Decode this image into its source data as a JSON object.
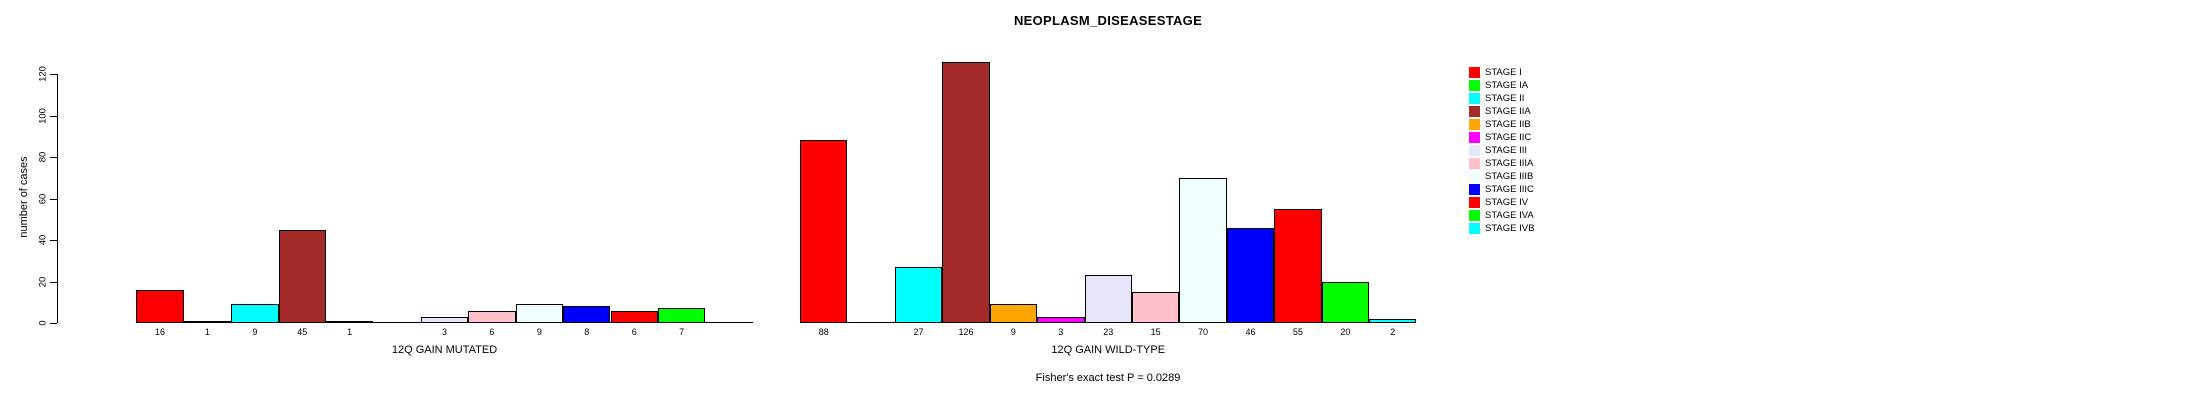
{
  "title": "NEOPLASM_DISEASESTAGE",
  "footer": "Fisher's exact test P = 0.0289",
  "chart_data": {
    "type": "bar",
    "title": "NEOPLASM_DISEASESTAGE",
    "xlabel": "",
    "ylabel": "number of cases",
    "ylim": [
      0,
      130
    ],
    "yticks": [
      0,
      20,
      40,
      60,
      80,
      100,
      120
    ],
    "grid": false,
    "legend_position": "right",
    "categories": [
      "STAGE I",
      "STAGE IA",
      "STAGE II",
      "STAGE IIA",
      "STAGE IIB",
      "STAGE IIC",
      "STAGE III",
      "STAGE IIIA",
      "STAGE IIIB",
      "STAGE IIIC",
      "STAGE IV",
      "STAGE IVA",
      "STAGE IVB"
    ],
    "colors": [
      "#FF0000",
      "#00FF00",
      "#00FFFF",
      "#A52A2A",
      "#FFA500",
      "#FF00FF",
      "#E6E6FA",
      "#FFC0CB",
      "#F0FFFF",
      "#0000FF",
      "#FF0000",
      "#00FF00",
      "#00FFFF"
    ],
    "series": [
      {
        "name": "12Q GAIN MUTATED",
        "key": "mutated",
        "values": [
          16,
          1,
          9,
          45,
          1,
          0,
          3,
          6,
          9,
          8,
          6,
          7,
          0
        ]
      },
      {
        "name": "12Q GAIN WILD-TYPE",
        "key": "wild-type",
        "values": [
          88,
          0,
          27,
          126,
          9,
          3,
          23,
          15,
          70,
          46,
          55,
          20,
          2
        ]
      }
    ],
    "bar_value_labels_shown": true,
    "zero_bars_unlabeled": true,
    "annotation": "Fisher's exact test P = 0.0289"
  }
}
